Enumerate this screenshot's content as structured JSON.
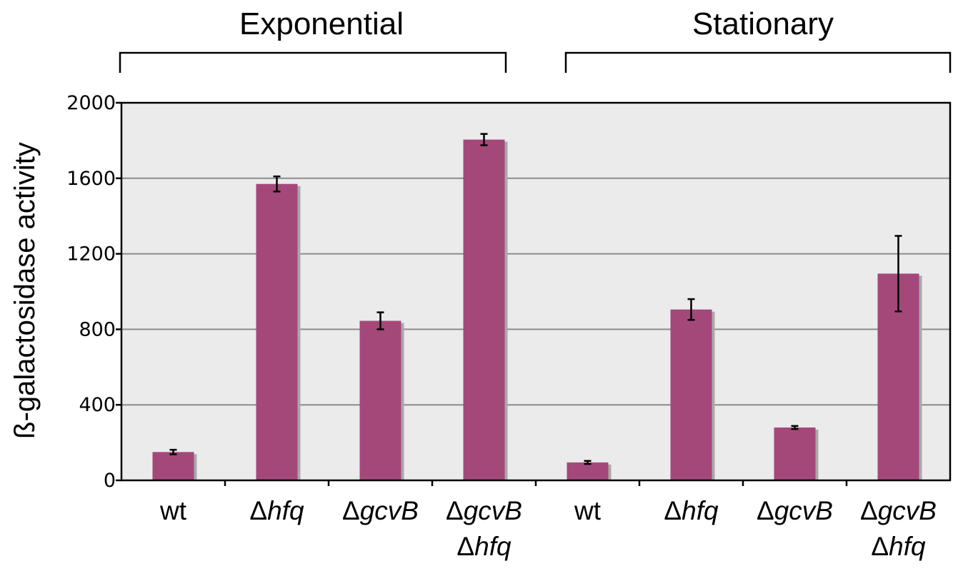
{
  "chart_data": {
    "type": "bar",
    "title": "",
    "xlabel": "",
    "ylabel": "ß-galactosidase activity",
    "ylim": [
      0,
      2000
    ],
    "yticks": [
      "0",
      "400",
      "800",
      "1200",
      "1600",
      "2000"
    ],
    "grid": true,
    "groups": [
      {
        "label": "Exponential"
      },
      {
        "label": "Stationary"
      }
    ],
    "categories": [
      {
        "prefix": "",
        "name": "wt",
        "line2": ""
      },
      {
        "prefix": "Δ",
        "name": "hfq",
        "line2": ""
      },
      {
        "prefix": "Δ",
        "name": "gcvB",
        "line2": ""
      },
      {
        "prefix": "Δ",
        "name": "gcvB",
        "line2": "hfq"
      },
      {
        "prefix": "",
        "name": "wt",
        "line2": ""
      },
      {
        "prefix": "Δ",
        "name": "hfq",
        "line2": ""
      },
      {
        "prefix": "Δ",
        "name": "gcvB",
        "line2": ""
      },
      {
        "prefix": "Δ",
        "name": "gcvB",
        "line2": "hfq"
      }
    ],
    "values": [
      150,
      1570,
      845,
      1805,
      95,
      905,
      280,
      1095
    ],
    "errors": [
      12,
      40,
      45,
      30,
      8,
      55,
      8,
      200
    ],
    "bar_color": "#a4487a",
    "shadow_color": "#a9a9a9",
    "plot_bg": "#ebebeb"
  }
}
